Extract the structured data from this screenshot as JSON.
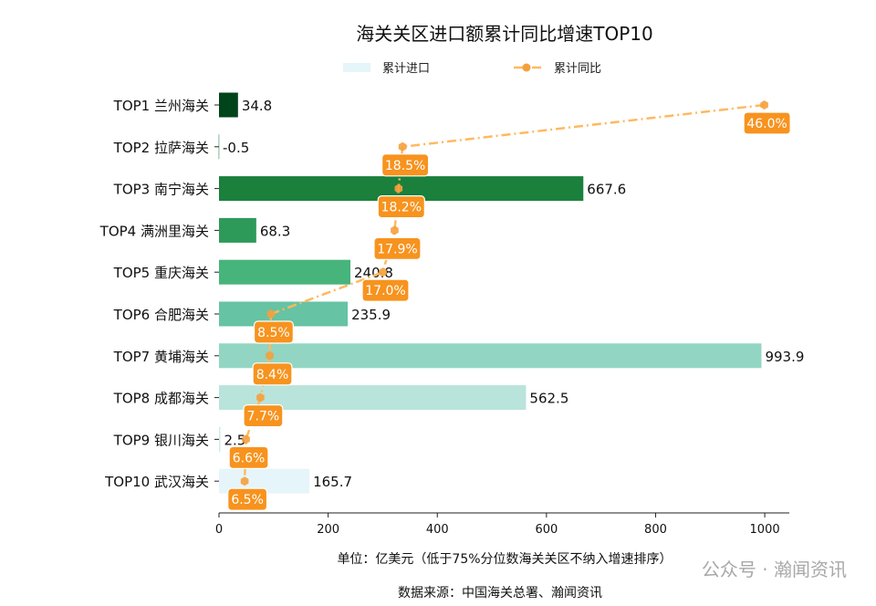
{
  "chart_data": {
    "type": "bar",
    "orientation": "horizontal",
    "title": "海关关区进口额累计同比增速TOP10",
    "xlabel": "单位：亿美元（低于75%分位数海关关区不纳入增速排序）",
    "source": "数据来源：中国海关总署、瀚闻资讯",
    "watermark": "公众号 · 瀚闻资讯",
    "xlim": [
      0,
      1045
    ],
    "xticks": [
      0,
      200,
      400,
      600,
      800,
      1000
    ],
    "legend": {
      "placement": "top-center",
      "bar_label": "累计进口",
      "line_label": "累计同比"
    },
    "categories": [
      "TOP1 兰州海关",
      "TOP2 拉萨海关",
      "TOP3 南宁海关",
      "TOP4 满洲里海关",
      "TOP5 重庆海关",
      "TOP6 合肥海关",
      "TOP7 黄埔海关",
      "TOP8 成都海关",
      "TOP9 银川海关",
      "TOP10 武汉海关"
    ],
    "series": [
      {
        "name": "累计进口",
        "type": "bar",
        "values": [
          34.8,
          -0.5,
          667.6,
          68.3,
          240.8,
          235.9,
          993.9,
          562.5,
          2.5,
          165.7
        ],
        "value_labels": [
          "34.8",
          "-0.5",
          "667.6",
          "68.3",
          "240.8",
          "235.9",
          "993.9",
          "562.5",
          "2.5",
          "165.7"
        ],
        "colors": [
          "#00441b",
          "#006d2c",
          "#1a803c",
          "#2e9a5a",
          "#47b47c",
          "#66c3a3",
          "#92d5c2",
          "#b9e4db",
          "#cdeee7",
          "#e6f5f9"
        ]
      },
      {
        "name": "累计同比",
        "type": "line",
        "unit": "%",
        "values": [
          46.0,
          18.5,
          18.2,
          17.9,
          17.0,
          8.5,
          8.4,
          7.7,
          6.6,
          6.5
        ],
        "value_labels": [
          "46.0%",
          "18.5%",
          "18.2%",
          "17.9%",
          "17.0%",
          "8.5%",
          "8.4%",
          "7.7%",
          "6.6%",
          "6.5%"
        ],
        "secondary_axis_hidden": true,
        "secondary_xlim": [
          4.55,
          47.9
        ],
        "line_color": "#ffb960",
        "marker_color": "#f5a03c",
        "label_bg": "#f7931e"
      }
    ],
    "grid": false
  }
}
